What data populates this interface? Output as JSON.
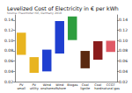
{
  "chart_data": {
    "type": "range_bar",
    "title": "Levelized Cost of Electricity in € per kWh",
    "subtitle": "Source: Fraunhofer ISE, Germany 2018",
    "categories": [
      "PV\nsmall",
      "PV\nutility",
      "Wind\nonshore",
      "Wind\noffshore",
      "Biogas",
      "Coal\nlignite",
      "Coal\nhard",
      "CCGT\nnatural gas"
    ],
    "low": [
      0.0723,
      0.0371,
      0.0399,
      0.0749,
      0.101,
      0.0459,
      0.0627,
      0.0778
    ],
    "high": [
      0.1154,
      0.0677,
      0.0823,
      0.1379,
      0.147,
      0.0798,
      0.0988,
      0.0996
    ],
    "colors": [
      "#e8b420",
      "#e8b420",
      "#1f3fd0",
      "#1f3fd0",
      "#2e9e3e",
      "#5a2a10",
      "#8a1c1c",
      "#e05a66"
    ],
    "ylim": [
      0.02,
      0.15
    ],
    "yticks": [
      0.02,
      0.04,
      0.06,
      0.08,
      {
        "value": 0.1,
        "label": "0.10"
      },
      0.12,
      0.14
    ],
    "y2lim": [
      0.02,
      0.15
    ],
    "y2ticks": [
      0.02,
      0.04,
      0.06,
      0.08,
      {
        "value": 0.1,
        "label": "0.10"
      },
      0.12,
      0.14
    ],
    "grid": false
  }
}
